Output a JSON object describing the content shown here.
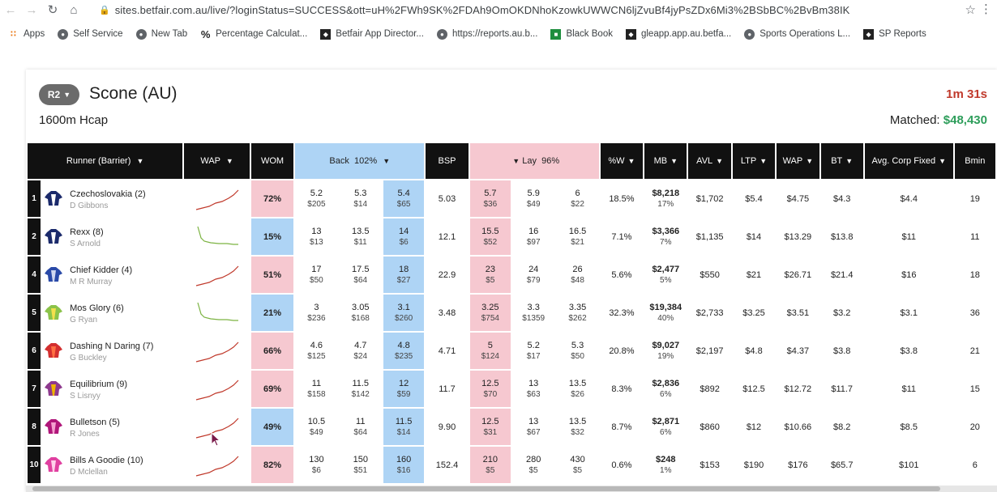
{
  "browser": {
    "url": "sites.betfair.com.au/live/?loginStatus=SUCCESS&ott=uH%2FWh9SK%2FDAh9OmOKDNhoKzowkUWWCN6ljZvuBf4jyPsZDx6Mi3%2BSbBC%2BvBm38IK",
    "bookmarks": [
      "Apps",
      "Self Service",
      "New Tab",
      "Percentage Calculat...",
      "Betfair App Director...",
      "https://reports.au.b...",
      "Black Book",
      "gleapp.app.au.betfa...",
      "Sports Operations L...",
      "SP Reports"
    ]
  },
  "race": {
    "pill": "R2",
    "title": "Scone (AU)",
    "subtitle": "1600m Hcap",
    "timer": "1m 31s",
    "matched_label": "Matched:",
    "matched_amount": "$48,430"
  },
  "headers": {
    "runner": "Runner (Barrier)",
    "wap": "WAP",
    "wom": "WOM",
    "back": "Back",
    "back_pct": "102%",
    "bsp": "BSP",
    "lay": "Lay",
    "lay_pct": "96%",
    "pw": "%W",
    "mb": "MB",
    "avl": "AVL",
    "ltp": "LTP",
    "wap2": "WAP",
    "bt": "BT",
    "corp": "Avg. Corp Fixed",
    "bmin": "Bmin"
  },
  "colors": {
    "back": "#aed4f5",
    "lay": "#f6c8d0",
    "header": "#111111",
    "spark_up": "#c0392b",
    "spark_down": "#7cb342"
  },
  "runners": [
    {
      "num": "1",
      "name": "Czechoslovakia (2)",
      "jockey": "D Gibbons",
      "spark": "up",
      "wom": "72%",
      "wom_side": "pink",
      "back": [
        [
          "5.2",
          "$205"
        ],
        [
          "5.3",
          "$14"
        ],
        [
          "5.4",
          "$65"
        ]
      ],
      "bsp": "5.03",
      "lay": [
        [
          "5.7",
          "$36"
        ],
        [
          "5.9",
          "$49"
        ],
        [
          "6",
          "$22"
        ]
      ],
      "pw": "18.5%",
      "mb": "$8,218",
      "mb_pct": "17%",
      "avl": "$1,702",
      "ltp": "$5.4",
      "wap": "$4.75",
      "bt": "$4.3",
      "corp": "$4.4",
      "bmin": "19",
      "silk": "navy"
    },
    {
      "num": "2",
      "name": "Rexx (8)",
      "jockey": "S Arnold",
      "spark": "down",
      "wom": "15%",
      "wom_side": "blue",
      "back": [
        [
          "13",
          "$13"
        ],
        [
          "13.5",
          "$11"
        ],
        [
          "14",
          "$6"
        ]
      ],
      "bsp": "12.1",
      "lay": [
        [
          "15.5",
          "$52"
        ],
        [
          "16",
          "$97"
        ],
        [
          "16.5",
          "$21"
        ]
      ],
      "pw": "7.1%",
      "mb": "$3,366",
      "mb_pct": "7%",
      "avl": "$1,135",
      "ltp": "$14",
      "wap": "$13.29",
      "bt": "$13.8",
      "corp": "$11",
      "bmin": "11",
      "silk": "navy"
    },
    {
      "num": "4",
      "name": "Chief Kidder (4)",
      "jockey": "M R Murray",
      "spark": "up",
      "wom": "51%",
      "wom_side": "pink",
      "back": [
        [
          "17",
          "$50"
        ],
        [
          "17.5",
          "$64"
        ],
        [
          "18",
          "$27"
        ]
      ],
      "bsp": "22.9",
      "lay": [
        [
          "23",
          "$5"
        ],
        [
          "24",
          "$79"
        ],
        [
          "26",
          "$48"
        ]
      ],
      "pw": "5.6%",
      "mb": "$2,477",
      "mb_pct": "5%",
      "avl": "$550",
      "ltp": "$21",
      "wap": "$26.71",
      "bt": "$21.4",
      "corp": "$16",
      "bmin": "18",
      "silk": "blue"
    },
    {
      "num": "5",
      "name": "Mos Glory (6)",
      "jockey": "G Ryan",
      "spark": "down",
      "wom": "21%",
      "wom_side": "blue",
      "back": [
        [
          "3",
          "$236"
        ],
        [
          "3.05",
          "$168"
        ],
        [
          "3.1",
          "$260"
        ]
      ],
      "bsp": "3.48",
      "lay": [
        [
          "3.25",
          "$754"
        ],
        [
          "3.3",
          "$1359"
        ],
        [
          "3.35",
          "$262"
        ]
      ],
      "pw": "32.3%",
      "mb": "$19,384",
      "mb_pct": "40%",
      "avl": "$2,733",
      "ltp": "$3.25",
      "wap": "$3.51",
      "bt": "$3.2",
      "corp": "$3.1",
      "bmin": "36",
      "silk": "lime"
    },
    {
      "num": "6",
      "name": "Dashing N Daring (7)",
      "jockey": "G Buckley",
      "spark": "up",
      "wom": "66%",
      "wom_side": "pink",
      "back": [
        [
          "4.6",
          "$125"
        ],
        [
          "4.7",
          "$24"
        ],
        [
          "4.8",
          "$235"
        ]
      ],
      "bsp": "4.71",
      "lay": [
        [
          "5",
          "$124"
        ],
        [
          "5.2",
          "$17"
        ],
        [
          "5.3",
          "$50"
        ]
      ],
      "pw": "20.8%",
      "mb": "$9,027",
      "mb_pct": "19%",
      "avl": "$2,197",
      "ltp": "$4.8",
      "wap": "$4.37",
      "bt": "$3.8",
      "corp": "$3.8",
      "bmin": "21",
      "silk": "red"
    },
    {
      "num": "7",
      "name": "Equilibrium (9)",
      "jockey": "S Lisnyy",
      "spark": "up",
      "wom": "69%",
      "wom_side": "pink",
      "back": [
        [
          "11",
          "$158"
        ],
        [
          "11.5",
          "$142"
        ],
        [
          "12",
          "$59"
        ]
      ],
      "bsp": "11.7",
      "lay": [
        [
          "12.5",
          "$70"
        ],
        [
          "13",
          "$63"
        ],
        [
          "13.5",
          "$26"
        ]
      ],
      "pw": "8.3%",
      "mb": "$2,836",
      "mb_pct": "6%",
      "avl": "$892",
      "ltp": "$12.5",
      "wap": "$12.72",
      "bt": "$11.7",
      "corp": "$11",
      "bmin": "15",
      "silk": "purple"
    },
    {
      "num": "8",
      "name": "Bulletson (5)",
      "jockey": "R Jones",
      "spark": "up",
      "wom": "49%",
      "wom_side": "blue",
      "back": [
        [
          "10.5",
          "$49"
        ],
        [
          "11",
          "$64"
        ],
        [
          "11.5",
          "$14"
        ]
      ],
      "bsp": "9.90",
      "lay": [
        [
          "12.5",
          "$31"
        ],
        [
          "13",
          "$67"
        ],
        [
          "13.5",
          "$32"
        ]
      ],
      "pw": "8.7%",
      "mb": "$2,871",
      "mb_pct": "6%",
      "avl": "$860",
      "ltp": "$12",
      "wap": "$10.66",
      "bt": "$8.2",
      "corp": "$8.5",
      "bmin": "20",
      "silk": "magenta"
    },
    {
      "num": "10",
      "name": "Bills A Goodie (10)",
      "jockey": "D Mclellan",
      "spark": "up",
      "wom": "82%",
      "wom_side": "pink",
      "back": [
        [
          "130",
          "$6"
        ],
        [
          "150",
          "$51"
        ],
        [
          "160",
          "$16"
        ]
      ],
      "bsp": "152.4",
      "lay": [
        [
          "210",
          "$5"
        ],
        [
          "280",
          "$5"
        ],
        [
          "430",
          "$5"
        ]
      ],
      "pw": "0.6%",
      "mb": "$248",
      "mb_pct": "1%",
      "avl": "$153",
      "ltp": "$190",
      "wap": "$176",
      "bt": "$65.7",
      "corp": "$101",
      "bmin": "6",
      "silk": "pink"
    }
  ]
}
